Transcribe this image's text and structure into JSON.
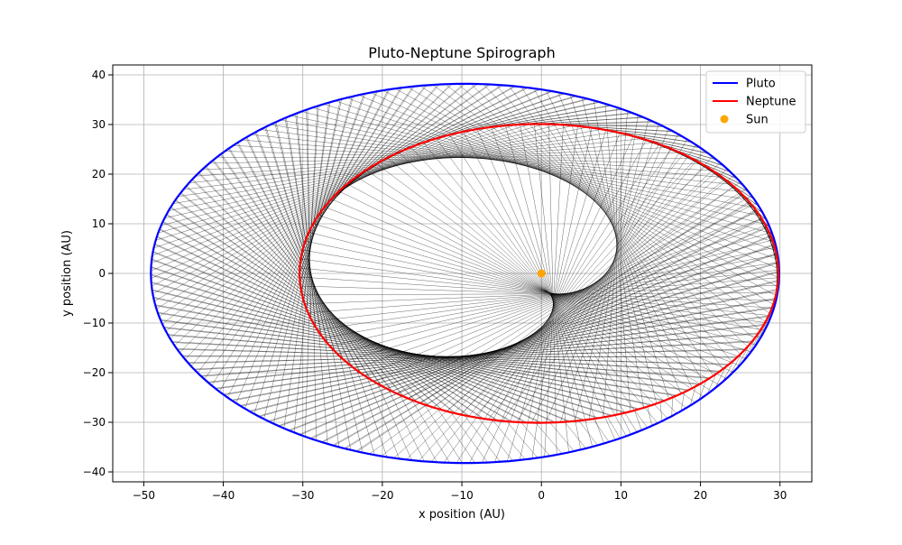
{
  "chart_data": {
    "type": "line",
    "title": "Pluto-Neptune Spirograph",
    "xlabel": "x position (AU)",
    "ylabel": "y position (AU)",
    "xlim": [
      -53.9,
      34.0
    ],
    "ylim": [
      -42.0,
      42.0
    ],
    "xticks": [
      -50,
      -40,
      -30,
      -20,
      -10,
      0,
      10,
      20,
      30
    ],
    "yticks": [
      -40,
      -30,
      -20,
      -10,
      0,
      10,
      20,
      30,
      40
    ],
    "grid": true,
    "legend_position": "top-right",
    "series": [
      {
        "name": "Pluto",
        "kind": "ellipse",
        "color": "#0000ff",
        "center": [
          -9.6,
          0.0
        ],
        "semi_axes": [
          39.5,
          38.2
        ]
      },
      {
        "name": "Neptune",
        "kind": "ellipse",
        "color": "#ff0000",
        "center": [
          -0.3,
          0.0
        ],
        "semi_axes": [
          30.1,
          30.1
        ]
      },
      {
        "name": "Sun",
        "kind": "scatter",
        "color": "#ffa500",
        "points": [
          [
            0,
            0
          ]
        ]
      }
    ],
    "connecting_lines": {
      "color": "#000000",
      "description_visible": false
    }
  }
}
